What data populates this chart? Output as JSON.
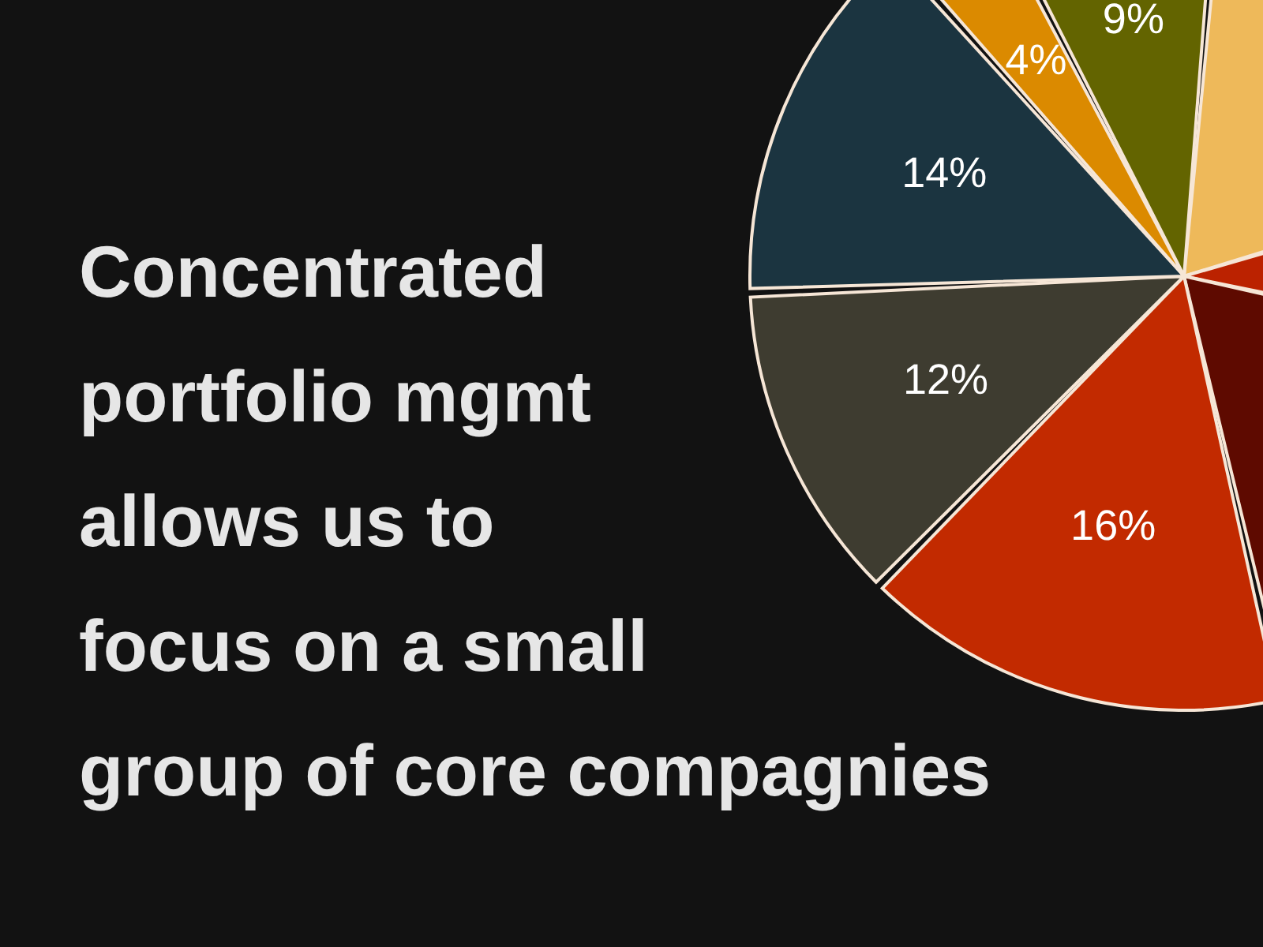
{
  "chart_data": {
    "type": "pie",
    "title": "Concentrated\nportfolio mgmt\nallows us to\nfocus on a small\ngroup of core compagnies",
    "categories": [
      null,
      null,
      null,
      null,
      null,
      null,
      null,
      null
    ],
    "values": [
      19,
      8,
      18,
      16,
      12,
      14,
      4,
      9
    ],
    "colors": [
      "#eeb95a",
      "#bb2200",
      "#5e0a00",
      "#c22a00",
      "#3e3c30",
      "#1b3440",
      "#db8a00",
      "#636400"
    ],
    "value_labels": [
      null,
      null,
      null,
      "16%",
      "12%",
      "14%",
      "4%",
      "9%"
    ]
  }
}
